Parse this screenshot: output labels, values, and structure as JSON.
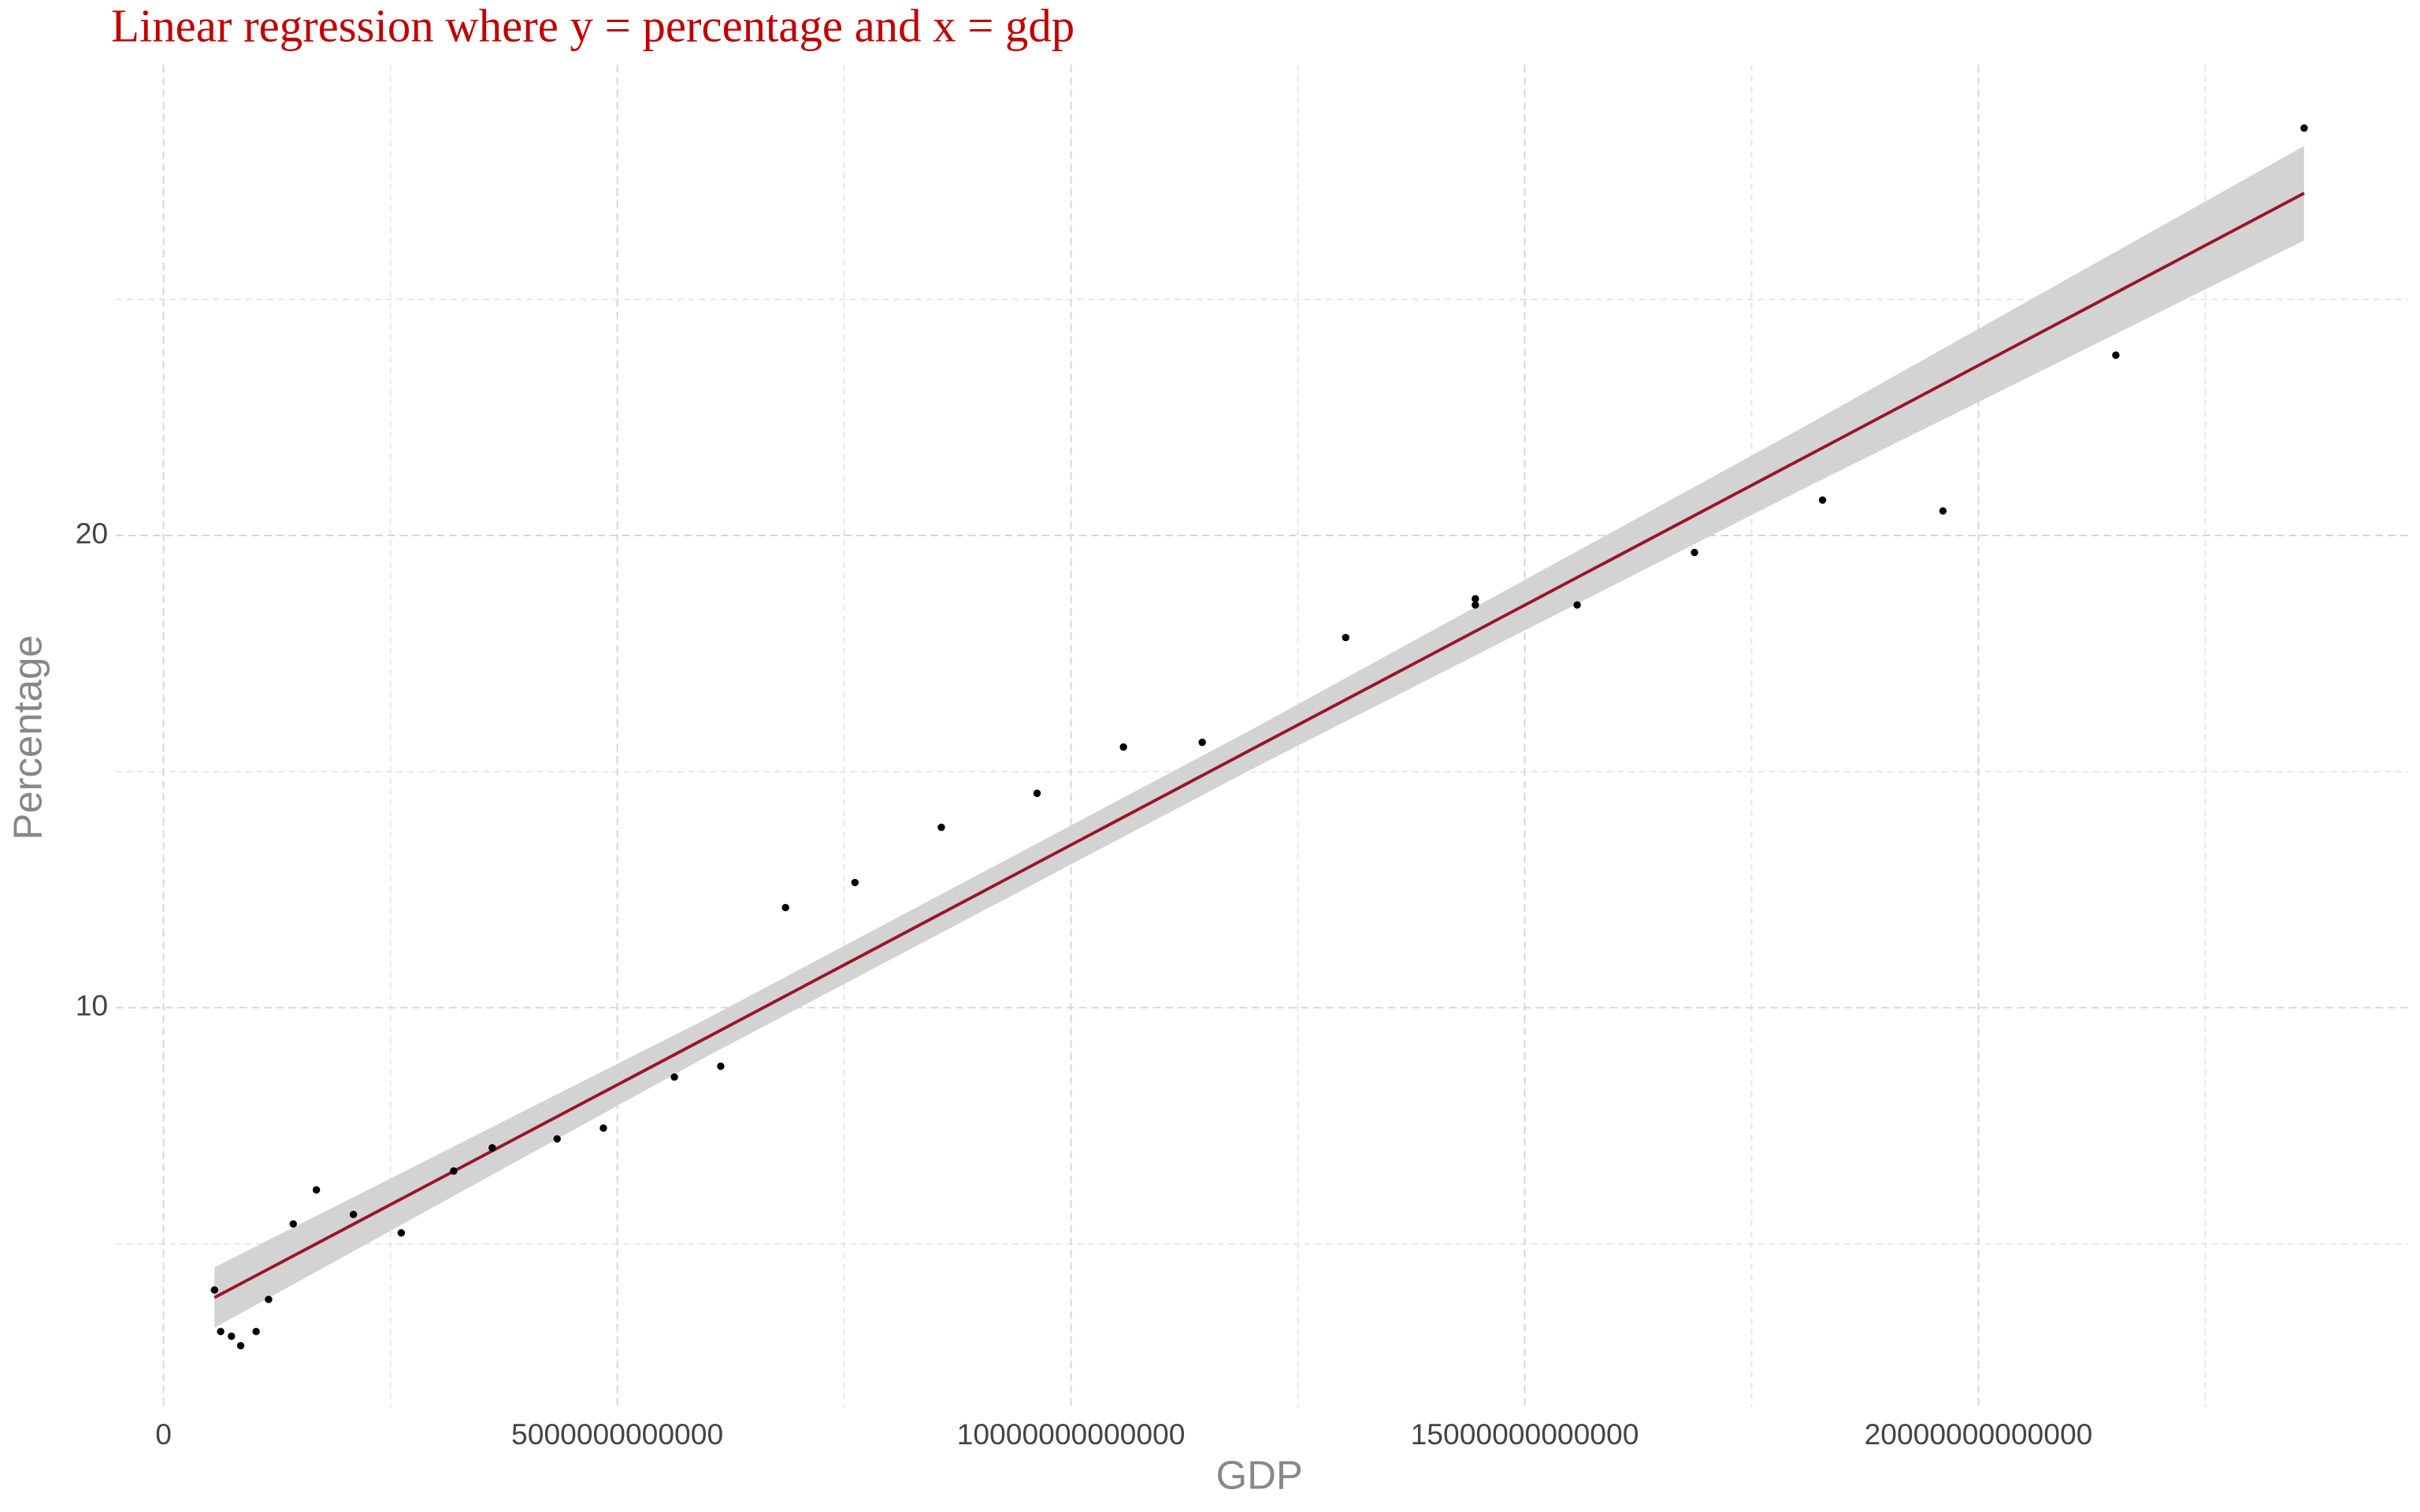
{
  "chart_data": {
    "type": "scatter",
    "title": "Linear regression where y = percentage and x = gdp",
    "xlabel": "GDP",
    "ylabel": "Percentage",
    "x": [
      561000000000,
      629000000000,
      748000000000,
      850000000000,
      1020000000000,
      1157000000000,
      1429000000000,
      1684000000000,
      2092000000000,
      2619000000000,
      3197000000000,
      3622000000000,
      4337000000000,
      4847000000000,
      5629000000000,
      6140000000000,
      6854000000000,
      7619000000000,
      8571000000000,
      9626000000000,
      10578000000000,
      11446000000000,
      13027000000000,
      14456000000000,
      14456000000000,
      15578000000000,
      16871000000000,
      18282000000000,
      19609000000000,
      21514000000000,
      23589000000000
    ],
    "y": [
      4.02,
      3.14,
      3.04,
      2.84,
      3.14,
      3.82,
      5.42,
      6.14,
      5.62,
      5.23,
      6.54,
      7.03,
      7.22,
      7.45,
      8.53,
      8.76,
      12.12,
      12.65,
      13.82,
      14.54,
      15.52,
      15.62,
      17.84,
      18.66,
      18.53,
      18.53,
      19.64,
      20.75,
      20.52,
      23.82,
      28.63
    ],
    "point_color": "#000000",
    "fit": {
      "x": [
        561000000000,
        6000000000000,
        12000000000000,
        18000000000000,
        23589000000000
      ],
      "y": [
        3.86,
        9.38,
        15.48,
        21.57,
        27.25
      ],
      "lower": [
        3.22,
        8.98,
        15.06,
        20.92,
        26.25
      ],
      "upper": [
        4.5,
        9.78,
        15.9,
        22.22,
        28.25
      ],
      "color": "#99152b",
      "band_color": "#d3d3d3"
    },
    "xlim": [
      -527000000000,
      24730000000000
    ],
    "ylim": [
      1.54,
      29.97
    ],
    "xticks": [
      0,
      5000000000000,
      10000000000000,
      15000000000000,
      20000000000000
    ],
    "yticks": [
      10,
      20
    ],
    "x_minor_ticks": [
      2500000000000,
      7500000000000,
      12500000000000,
      17500000000000,
      22500000000000
    ],
    "y_minor_ticks": [
      5,
      15,
      25
    ],
    "grid": true
  }
}
